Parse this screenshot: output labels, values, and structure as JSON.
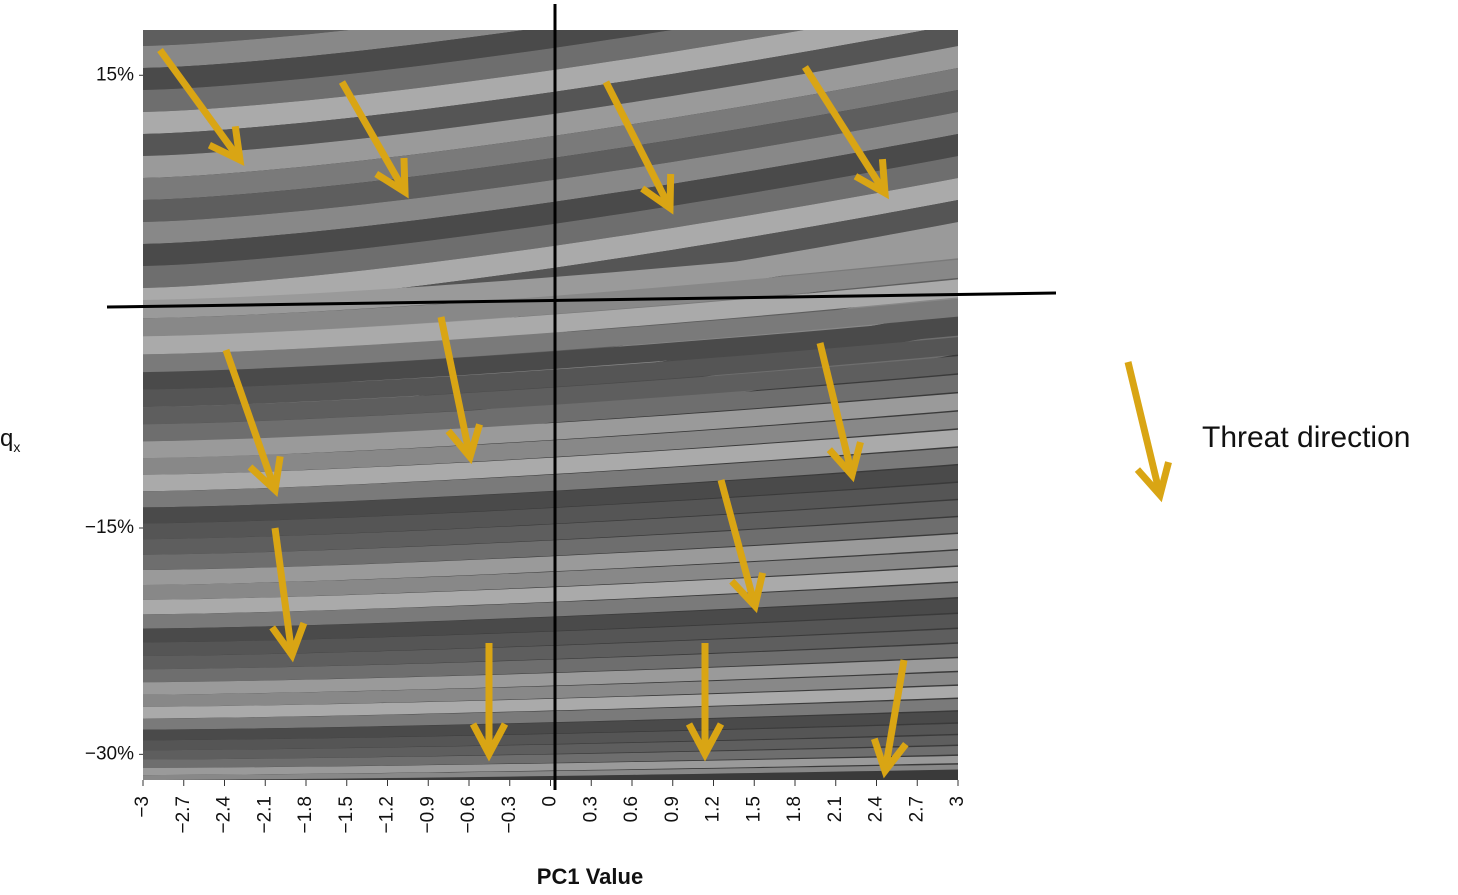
{
  "chart_data": {
    "type": "quadrant-field",
    "xlabel": "PC1 Value",
    "ylabel": {
      "base": "q",
      "subscript": "x"
    },
    "legend": "Threat direction",
    "xlim": [
      -3,
      3
    ],
    "xticks": [
      {
        "value": -3,
        "label": "−3"
      },
      {
        "value": -2.7,
        "label": "−2.7"
      },
      {
        "value": -2.4,
        "label": "−2.4"
      },
      {
        "value": -2.1,
        "label": "−2.1"
      },
      {
        "value": -1.8,
        "label": "−1.8"
      },
      {
        "value": -1.5,
        "label": "−1.5"
      },
      {
        "value": -1.2,
        "label": "−1.2"
      },
      {
        "value": -0.9,
        "label": "−0.9"
      },
      {
        "value": -0.6,
        "label": "−0.6"
      },
      {
        "value": -0.3,
        "label": "−0.3"
      },
      0,
      0.3,
      0.6,
      0.9,
      1.2,
      1.5,
      1.8,
      2.1,
      2.4,
      2.7,
      3
    ],
    "ylim": [
      -31.7,
      18
    ],
    "yticks": [
      {
        "value": 15,
        "label": "15%"
      },
      {
        "value": -15,
        "label": "−15%"
      },
      {
        "value": -30,
        "label": "−30%"
      }
    ],
    "arrow_color": "#d9a514"
  }
}
